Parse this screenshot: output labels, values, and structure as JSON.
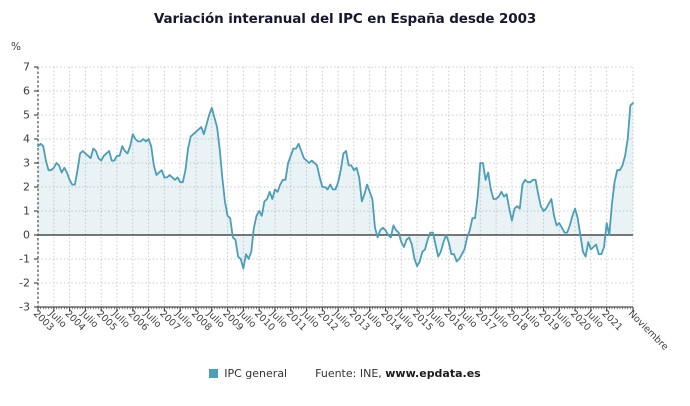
{
  "page": {
    "background": "#ffffff"
  },
  "chart_data": {
    "type": "area",
    "title": "Variación interanual del IPC en España desde 2003",
    "y_unit": "%",
    "ylabel": "%",
    "xlabel": "",
    "ylim": [
      -3,
      7
    ],
    "y_ticks": [
      7,
      6,
      5,
      4,
      3,
      2,
      1,
      0,
      -1,
      -2,
      -3
    ],
    "grid": true,
    "legend_position": "bottom-center",
    "x_start_month": "2003-01",
    "x_end_month": "2021-11",
    "x_tick_month_indices": [
      0,
      6,
      12,
      18,
      24,
      30,
      36,
      42,
      48,
      54,
      60,
      66,
      72,
      78,
      84,
      90,
      96,
      102,
      108,
      114,
      120,
      126,
      132,
      138,
      144,
      150,
      156,
      162,
      168,
      174,
      180,
      186,
      192,
      198,
      204,
      210,
      216,
      226
    ],
    "x_tick_labels": [
      "2003",
      "Julio",
      "2004",
      "Julio",
      "2005",
      "Julio",
      "2006",
      "Julio",
      "2007",
      "Julio",
      "2008",
      "Julio",
      "2009",
      "Julio",
      "2010",
      "Julio",
      "2011",
      "Julio",
      "2012",
      "Julio",
      "2013",
      "Julio",
      "2014",
      "Julio",
      "2015",
      "Julio",
      "2016",
      "Julio",
      "2017",
      "Julio",
      "2018",
      "Julio",
      "2019",
      "Julio",
      "2020",
      "Julio",
      "2021",
      "Noviembre"
    ],
    "series": [
      {
        "name": "IPC general",
        "color": "#4D9DB6",
        "fill_opacity": 0.12,
        "values": [
          3.7,
          3.8,
          3.7,
          3.1,
          2.7,
          2.7,
          2.8,
          3.0,
          2.9,
          2.6,
          2.8,
          2.6,
          2.3,
          2.1,
          2.1,
          2.7,
          3.4,
          3.5,
          3.4,
          3.3,
          3.2,
          3.6,
          3.5,
          3.2,
          3.1,
          3.3,
          3.4,
          3.5,
          3.1,
          3.1,
          3.3,
          3.3,
          3.7,
          3.5,
          3.4,
          3.7,
          4.2,
          4.0,
          3.9,
          3.9,
          4.0,
          3.9,
          4.0,
          3.7,
          2.9,
          2.5,
          2.6,
          2.7,
          2.4,
          2.4,
          2.5,
          2.4,
          2.3,
          2.4,
          2.2,
          2.2,
          2.7,
          3.6,
          4.1,
          4.2,
          4.3,
          4.4,
          4.5,
          4.2,
          4.6,
          5.0,
          5.3,
          4.9,
          4.5,
          3.6,
          2.4,
          1.4,
          0.8,
          0.7,
          -0.1,
          -0.2,
          -0.9,
          -1.0,
          -1.4,
          -0.8,
          -1.0,
          -0.7,
          0.3,
          0.8,
          1.0,
          0.8,
          1.4,
          1.5,
          1.8,
          1.5,
          1.9,
          1.8,
          2.1,
          2.3,
          2.3,
          3.0,
          3.3,
          3.6,
          3.6,
          3.8,
          3.5,
          3.2,
          3.1,
          3.0,
          3.1,
          3.0,
          2.9,
          2.4,
          2.0,
          2.0,
          1.9,
          2.1,
          1.9,
          1.9,
          2.2,
          2.7,
          3.4,
          3.5,
          2.9,
          2.9,
          2.7,
          2.8,
          2.4,
          1.4,
          1.7,
          2.1,
          1.8,
          1.5,
          0.3,
          -0.1,
          0.2,
          0.3,
          0.2,
          0.0,
          -0.1,
          0.4,
          0.2,
          0.1,
          -0.3,
          -0.5,
          -0.2,
          -0.1,
          -0.4,
          -1.0,
          -1.3,
          -1.1,
          -0.7,
          -0.6,
          -0.2,
          0.1,
          0.1,
          -0.4,
          -0.9,
          -0.7,
          -0.3,
          0.0,
          -0.3,
          -0.8,
          -0.8,
          -1.1,
          -1.0,
          -0.8,
          -0.6,
          -0.1,
          0.2,
          0.7,
          0.7,
          1.6,
          3.0,
          3.0,
          2.3,
          2.6,
          1.9,
          1.5,
          1.5,
          1.6,
          1.8,
          1.6,
          1.7,
          1.1,
          0.6,
          1.1,
          1.2,
          1.1,
          2.1,
          2.3,
          2.2,
          2.2,
          2.3,
          2.3,
          1.7,
          1.2,
          1.0,
          1.1,
          1.3,
          1.5,
          0.8,
          0.4,
          0.5,
          0.3,
          0.1,
          0.1,
          0.4,
          0.8,
          1.1,
          0.7,
          0.0,
          -0.7,
          -0.9,
          -0.3,
          -0.6,
          -0.5,
          -0.4,
          -0.8,
          -0.8,
          -0.5,
          0.5,
          0.0,
          1.3,
          2.2,
          2.7,
          2.7,
          2.9,
          3.3,
          4.0,
          5.4,
          5.5
        ]
      }
    ],
    "source": {
      "prefix": "Fuente: INE, ",
      "link": "www.epdata.es"
    }
  }
}
